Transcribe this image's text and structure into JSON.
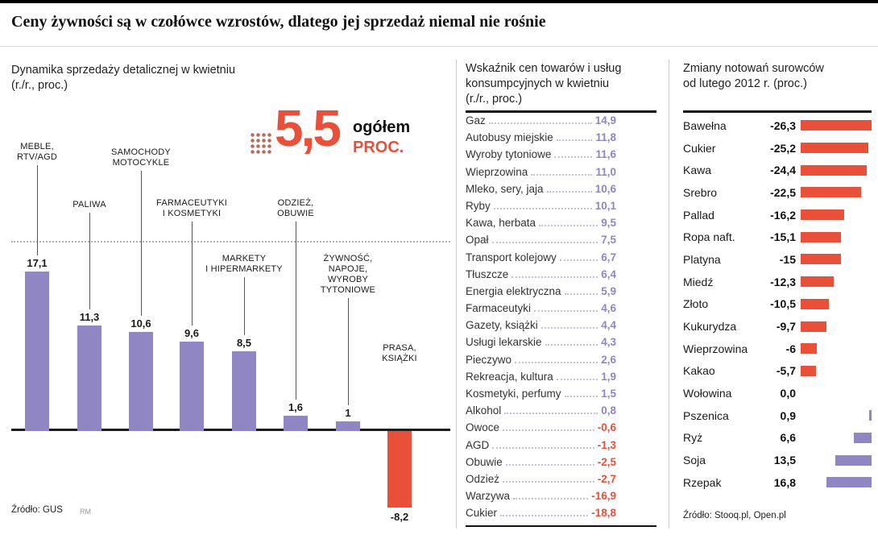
{
  "title": "Ceny żywności są w czołówce wzrostów, dlatego jej sprzedaż niemal nie rośnie",
  "colors": {
    "purple": "#8F86C3",
    "red": "#E8503A"
  },
  "retail": {
    "heading": [
      "Dynamika sprzedaży detalicznej w kwietniu",
      "(r./r., proc.)"
    ],
    "overall_value": "5,5",
    "overall_label": "ogółem",
    "overall_unit": "PROC.",
    "source": "Źródło: GUS",
    "credit": "RM"
  },
  "cpi": {
    "heading": [
      "Wskaźnik cen towarów i usług",
      "konsumpcyjnych w kwietniu",
      "(r./r., proc.)"
    ]
  },
  "commodities": {
    "heading": [
      "Zmiany notowań surowców",
      "od lutego 2012 r. (proc.)"
    ],
    "source": "Źródło: Stooq.pl, Open.pl"
  },
  "chart_data": [
    {
      "type": "bar",
      "title": "Dynamika sprzedaży detalicznej w kwietniu (r./r., proc.)",
      "overall": 5.5,
      "categories": [
        "MEBLE, RTV/AGD",
        "PALIWA",
        "SAMOCHODY MOTOCYKLE",
        "FARMACEUTYKI I KOSMETYKI",
        "MARKETY I HIPERMARKETY",
        "ODZIEŻ, OBUWIE",
        "ŻYWNOŚĆ, NAPOJE, WYROBY TYTONIOWE",
        "PRASA, KSIĄŻKI"
      ],
      "label_lines": [
        [
          "MEBLE,",
          "RTV/AGD"
        ],
        [
          "PALIWA"
        ],
        [
          "SAMOCHODY",
          "MOTOCYKLE"
        ],
        [
          "FARMACEUTYKI",
          "I KOSMETYKI"
        ],
        [
          "MARKETY",
          "I HIPERMARKETY"
        ],
        [
          "ODZIEŻ,",
          "OBUWIE"
        ],
        [
          "ŻYWNOŚĆ,",
          "NAPOJE,",
          "WYROBY",
          "TYTONIOWE"
        ],
        [
          "PRASA,",
          "KSIĄŻKI"
        ]
      ],
      "values": [
        17.1,
        11.3,
        10.6,
        9.6,
        8.5,
        1.6,
        1,
        -8.2
      ],
      "value_labels": [
        "17,1",
        "11,3",
        "10,6",
        "9,6",
        "8,5",
        "1,6",
        "1",
        "-8,2"
      ],
      "ylim": [
        -10,
        18
      ],
      "bar_color_positive": "#8F86C3",
      "bar_color_negative": "#E8503A",
      "grid": false,
      "legend": "none"
    },
    {
      "type": "table",
      "title": "Wskaźnik cen towarów i usług konsumpcyjnych w kwietniu (r./r., proc.)",
      "rows": [
        {
          "label": "Gaz",
          "value": 14.9,
          "display": "14,9"
        },
        {
          "label": "Autobusy miejskie",
          "value": 11.8,
          "display": "11,8"
        },
        {
          "label": "Wyroby tytoniowe",
          "value": 11.6,
          "display": "11,6"
        },
        {
          "label": "Wieprzowina",
          "value": 11.0,
          "display": "11,0"
        },
        {
          "label": "Mleko, sery, jaja",
          "value": 10.6,
          "display": "10,6"
        },
        {
          "label": "Ryby",
          "value": 10.1,
          "display": "10,1"
        },
        {
          "label": "Kawa, herbata",
          "value": 9.5,
          "display": "9,5"
        },
        {
          "label": "Opał",
          "value": 7.5,
          "display": "7,5"
        },
        {
          "label": "Transport kolejowy",
          "value": 6.7,
          "display": "6,7"
        },
        {
          "label": "Tłuszcze",
          "value": 6.4,
          "display": "6,4"
        },
        {
          "label": "Energia elektryczna",
          "value": 5.9,
          "display": "5,9"
        },
        {
          "label": "Farmaceutyki",
          "value": 4.6,
          "display": "4,6"
        },
        {
          "label": "Gazety, książki",
          "value": 4.4,
          "display": "4,4"
        },
        {
          "label": "Usługi lekarskie",
          "value": 4.3,
          "display": "4,3"
        },
        {
          "label": "Pieczywo",
          "value": 2.6,
          "display": "2,6"
        },
        {
          "label": "Rekreacja, kultura",
          "value": 1.9,
          "display": "1,9"
        },
        {
          "label": "Kosmetyki, perfumy",
          "value": 1.5,
          "display": "1,5"
        },
        {
          "label": "Alkohol",
          "value": 0.8,
          "display": "0,8"
        },
        {
          "label": "Owoce",
          "value": -0.6,
          "display": "-0,6"
        },
        {
          "label": "AGD",
          "value": -1.3,
          "display": "-1,3"
        },
        {
          "label": "Obuwie",
          "value": -2.5,
          "display": "-2,5"
        },
        {
          "label": "Odzież",
          "value": -2.7,
          "display": "-2,7"
        },
        {
          "label": "Warzywa",
          "value": -16.9,
          "display": "-16,9"
        },
        {
          "label": "Cukier",
          "value": -18.8,
          "display": "-18,8"
        }
      ]
    },
    {
      "type": "bar",
      "orientation": "horizontal",
      "title": "Zmiany notowań surowców od lutego 2012 r. (proc.)",
      "xlim": [
        -27,
        17
      ],
      "bar_color_positive": "#8F86C3",
      "bar_color_negative": "#E8503A",
      "rows": [
        {
          "label": "Bawełna",
          "value": -26.3,
          "display": "-26,3"
        },
        {
          "label": "Cukier",
          "value": -25.2,
          "display": "-25,2"
        },
        {
          "label": "Kawa",
          "value": -24.4,
          "display": "-24,4"
        },
        {
          "label": "Srebro",
          "value": -22.5,
          "display": "-22,5"
        },
        {
          "label": "Pallad",
          "value": -16.2,
          "display": "-16,2"
        },
        {
          "label": "Ropa naft.",
          "value": -15.1,
          "display": "-15,1"
        },
        {
          "label": "Platyna",
          "value": -15,
          "display": "-15"
        },
        {
          "label": "Miedź",
          "value": -12.3,
          "display": "-12,3"
        },
        {
          "label": "Złoto",
          "value": -10.5,
          "display": "-10,5"
        },
        {
          "label": "Kukurydza",
          "value": -9.7,
          "display": "-9,7"
        },
        {
          "label": "Wieprzowina",
          "value": -6,
          "display": "-6"
        },
        {
          "label": "Kakao",
          "value": -5.7,
          "display": "-5,7"
        },
        {
          "label": "Wołowina",
          "value": 0.0,
          "display": "0,0"
        },
        {
          "label": "Pszenica",
          "value": 0.9,
          "display": "0,9"
        },
        {
          "label": "Ryż",
          "value": 6.6,
          "display": "6,6"
        },
        {
          "label": "Soja",
          "value": 13.5,
          "display": "13,5"
        },
        {
          "label": "Rzepak",
          "value": 16.8,
          "display": "16,8"
        }
      ]
    }
  ]
}
